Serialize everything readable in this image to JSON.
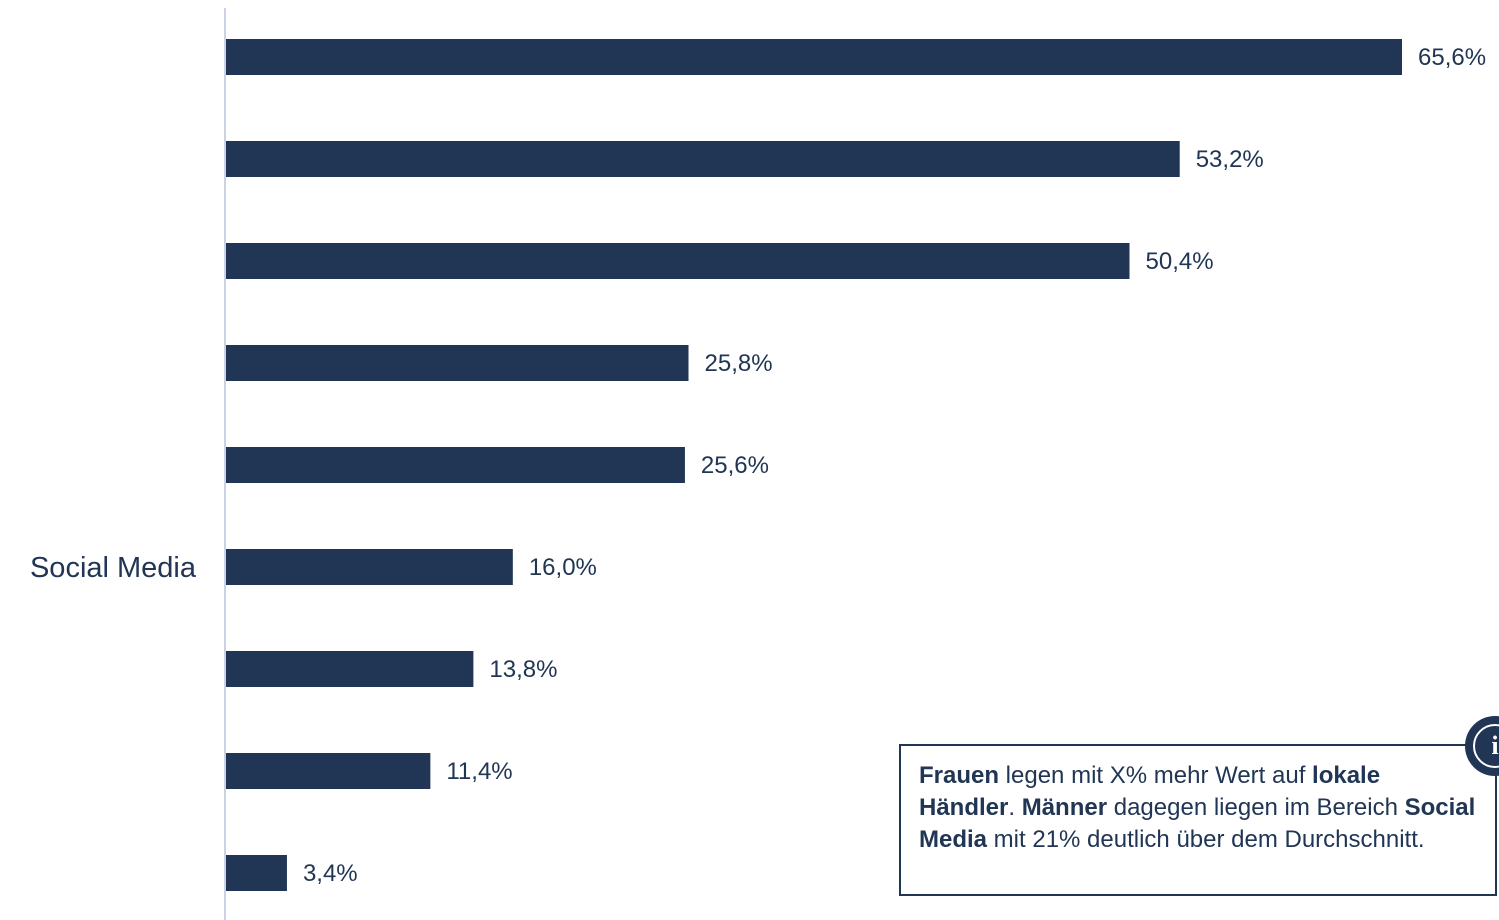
{
  "chart_data": {
    "type": "bar",
    "orientation": "horizontal",
    "categories": [
      "",
      "",
      "",
      "",
      "",
      "Social Media",
      "",
      "",
      ""
    ],
    "values": [
      65.6,
      53.2,
      50.4,
      25.8,
      25.6,
      16.0,
      13.8,
      11.4,
      3.4
    ],
    "value_labels": [
      "65,6%",
      "53,2%",
      "50,4%",
      "25,8%",
      "25,6%",
      "16,0%",
      "13,8%",
      "11,4%",
      "3,4%"
    ],
    "xlim": [
      0,
      65.6
    ],
    "grid": false,
    "colors": {
      "bar": "#213654",
      "axis": "#c9d3e3",
      "marker": "#7ac943"
    }
  },
  "note": {
    "women_word": "Frauen",
    "text_1": " legen mit X% mehr Wert auf ",
    "local_dealers": "lokale Händler",
    "text_2": ". ",
    "men_word": "Männer",
    "text_3": " dagegen liegen im Bereich ",
    "social_media": "Social Media",
    "text_4": " mit 21% deutlich über dem Durchschnitt."
  },
  "info_badge": {
    "icon": "info-icon",
    "glyph": "i"
  },
  "marker": {
    "icon": "green-chevron-marker"
  }
}
